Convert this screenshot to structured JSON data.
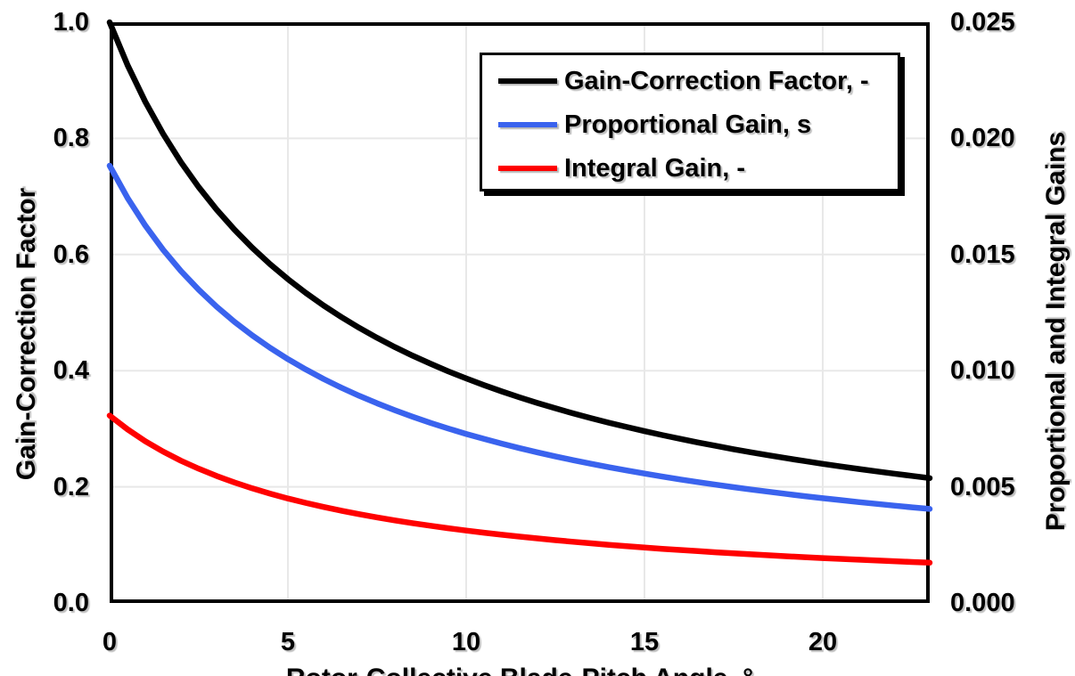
{
  "figure": {
    "background": "#FFFFFF",
    "border_color": "#000000"
  },
  "chart_data": {
    "type": "line",
    "title": "",
    "xlabel": "Rotor-Collective Blade-Pitch Angle, °",
    "ylabel_left": "Gain-Correction Factor",
    "ylabel_right": "Proportional and Integral Gains",
    "xlim": [
      0,
      23
    ],
    "ylim_left": [
      0,
      1.0
    ],
    "ylim_right": [
      0,
      0.025
    ],
    "grid": true,
    "grid_color": "#E8E8E8",
    "legend_position": "top-right-inside",
    "x_ticks": [
      {
        "value": 0,
        "label": "0"
      },
      {
        "value": 5,
        "label": "5"
      },
      {
        "value": 10,
        "label": "10"
      },
      {
        "value": 15,
        "label": "15"
      },
      {
        "value": 20,
        "label": "20"
      }
    ],
    "y_ticks_left": [
      {
        "value": 0.0,
        "label": "0.0"
      },
      {
        "value": 0.2,
        "label": "0.2"
      },
      {
        "value": 0.4,
        "label": "0.4"
      },
      {
        "value": 0.6,
        "label": "0.6"
      },
      {
        "value": 0.8,
        "label": "0.8"
      },
      {
        "value": 1.0,
        "label": "1.0"
      }
    ],
    "y_ticks_right": [
      {
        "value": 0.0,
        "label": "0.000"
      },
      {
        "value": 0.005,
        "label": "0.005"
      },
      {
        "value": 0.01,
        "label": "0.010"
      },
      {
        "value": 0.015,
        "label": "0.015"
      },
      {
        "value": 0.02,
        "label": "0.020"
      },
      {
        "value": 0.025,
        "label": "0.025"
      }
    ],
    "x": [
      0,
      0.5,
      1,
      1.5,
      2,
      2.5,
      3,
      3.5,
      4,
      4.5,
      5,
      5.5,
      6,
      6.5,
      7,
      7.5,
      8,
      8.5,
      9,
      9.5,
      10,
      10.5,
      11,
      11.5,
      12,
      12.5,
      13,
      13.5,
      14,
      14.5,
      15,
      15.5,
      16,
      16.5,
      17,
      17.5,
      18,
      18.5,
      19,
      19.5,
      20,
      20.5,
      21,
      21.5,
      22,
      22.5,
      23
    ],
    "series": [
      {
        "name": "Gain-Correction Factor, -",
        "axis": "left",
        "color": "#000000",
        "values": [
          1.0,
          0.9265,
          0.8631,
          0.8078,
          0.7591,
          0.716,
          0.6775,
          0.6429,
          0.6117,
          0.5834,
          0.5576,
          0.534,
          0.5123,
          0.4923,
          0.4738,
          0.4566,
          0.4406,
          0.4258,
          0.4119,
          0.3988,
          0.3866,
          0.3751,
          0.3643,
          0.354,
          0.3443,
          0.3352,
          0.3265,
          0.3183,
          0.3104,
          0.303,
          0.2959,
          0.2891,
          0.2826,
          0.2764,
          0.2705,
          0.2648,
          0.2593,
          0.2541,
          0.2491,
          0.2443,
          0.2396,
          0.2351,
          0.2308,
          0.2267,
          0.2227,
          0.2188,
          0.2151
        ]
      },
      {
        "name": "Proportional Gain, s",
        "axis": "right",
        "color": "#3A63EE",
        "values": [
          0.018827,
          0.017443,
          0.016249,
          0.015207,
          0.014292,
          0.01348,
          0.012755,
          0.012104,
          0.011517,
          0.010984,
          0.010498,
          0.010053,
          0.009645,
          0.009268,
          0.00892,
          0.008597,
          0.008296,
          0.008016,
          0.007754,
          0.007509,
          0.007278,
          0.007062,
          0.006858,
          0.006665,
          0.006483,
          0.006311,
          0.006147,
          0.005992,
          0.005844,
          0.005704,
          0.00557,
          0.005442,
          0.00532,
          0.005204,
          0.005092,
          0.004985,
          0.004882,
          0.004784,
          0.004689,
          0.004599,
          0.004511,
          0.004427,
          0.004346,
          0.004268,
          0.004192,
          0.00412,
          0.004049
        ]
      },
      {
        "name": "Integral Gain, -",
        "axis": "right",
        "color": "#FF0000",
        "values": [
          0.008069,
          0.007476,
          0.006964,
          0.006518,
          0.006125,
          0.005777,
          0.005467,
          0.005188,
          0.004936,
          0.004707,
          0.004499,
          0.004309,
          0.004134,
          0.003972,
          0.003823,
          0.003684,
          0.003556,
          0.003435,
          0.003323,
          0.003218,
          0.003119,
          0.003027,
          0.002939,
          0.002857,
          0.002778,
          0.002705,
          0.002634,
          0.002568,
          0.002505,
          0.002445,
          0.002387,
          0.002332,
          0.00228,
          0.00223,
          0.002182,
          0.002136,
          0.002092,
          0.00205,
          0.00201,
          0.001971,
          0.001933,
          0.001897,
          0.001862,
          0.001829,
          0.001797,
          0.001765,
          0.001735
        ]
      }
    ]
  }
}
